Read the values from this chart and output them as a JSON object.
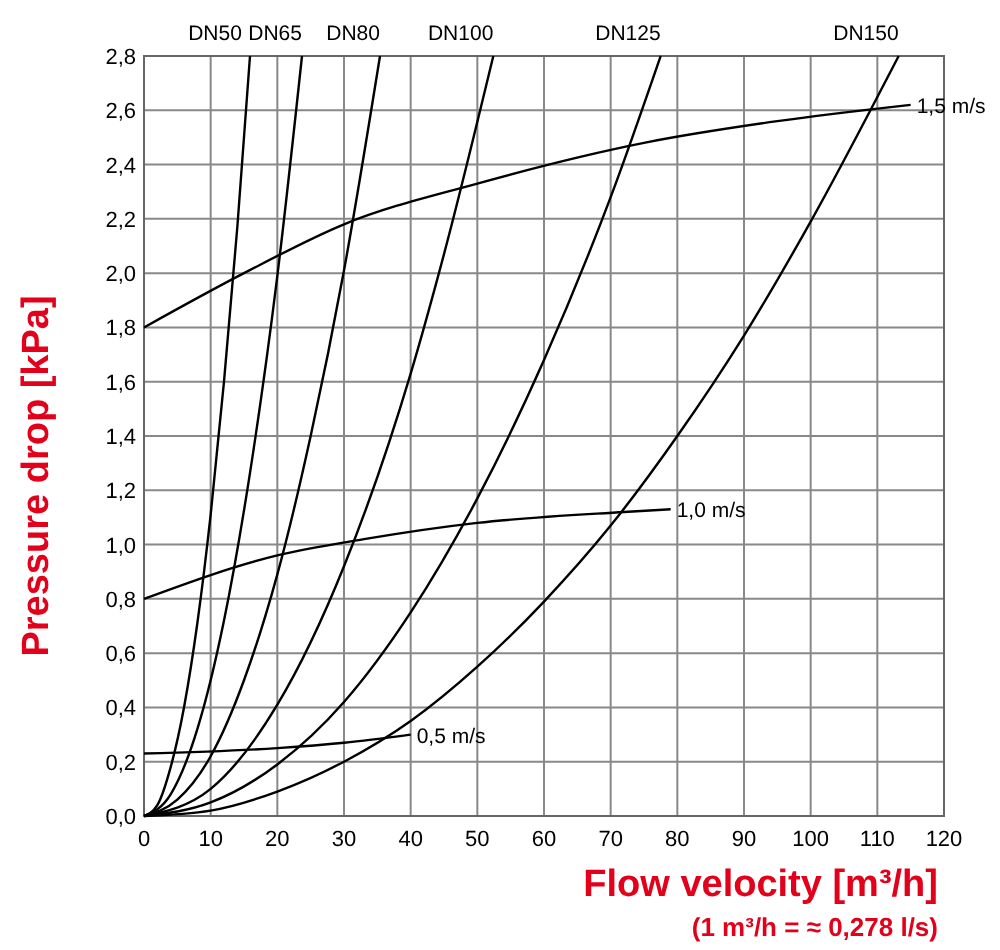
{
  "chart_data": {
    "type": "line",
    "xlabel": "Flow velocity [m³/h]",
    "ylabel": "Pressure drop [kPa]",
    "annotations": [
      "(1 m³/h = ≈ 0,278 l/s)"
    ],
    "xlim": [
      0,
      120
    ],
    "xticks": [
      0,
      10,
      20,
      30,
      40,
      50,
      60,
      70,
      80,
      90,
      100,
      110,
      120
    ],
    "ylim": [
      0,
      2.8
    ],
    "yticks": [
      {
        "value": 0,
        "label": "0,0"
      },
      {
        "value": 0.2,
        "label": "0,2"
      },
      {
        "value": 0.4,
        "label": "0,4"
      },
      {
        "value": 0.6,
        "label": "0,6"
      },
      {
        "value": 0.8,
        "label": "0,8"
      },
      {
        "value": 1,
        "label": "1,0"
      },
      {
        "value": 1.2,
        "label": "1,2"
      },
      {
        "value": 1.4,
        "label": "1,4"
      },
      {
        "value": 1.6,
        "label": "1,6"
      },
      {
        "value": 1.8,
        "label": "1,8"
      },
      {
        "value": 2,
        "label": "2,0"
      },
      {
        "value": 2.2,
        "label": "2,2"
      },
      {
        "value": 2.4,
        "label": "2,4"
      },
      {
        "value": 2.6,
        "label": "2,6"
      },
      {
        "value": 2.8,
        "label": "2,8"
      }
    ],
    "grid": true,
    "marker": "none",
    "line_style": "solid",
    "series": [
      {
        "name": "DN50",
        "color": "#000000",
        "x": [
          0,
          2,
          4,
          6,
          8,
          10,
          12,
          14,
          15.9
        ],
        "values": [
          0,
          0.04,
          0.18,
          0.4,
          0.71,
          1.11,
          1.6,
          2.17,
          2.8
        ]
      },
      {
        "name": "DN65",
        "color": "#000000",
        "x": [
          0,
          4,
          8,
          12,
          16,
          20,
          23.7
        ],
        "values": [
          0,
          0.08,
          0.32,
          0.72,
          1.28,
          1.99,
          2.8
        ]
      },
      {
        "name": "DN80",
        "color": "#000000",
        "x": [
          0,
          5,
          10,
          15,
          20,
          25,
          30,
          35.4
        ],
        "values": [
          0,
          0.06,
          0.22,
          0.5,
          0.89,
          1.4,
          2.01,
          2.8
        ]
      },
      {
        "name": "DN100",
        "color": "#000000",
        "x": [
          0,
          10,
          20,
          30,
          40,
          45,
          52.4
        ],
        "values": [
          0,
          0.1,
          0.41,
          0.92,
          1.63,
          2.07,
          2.8
        ]
      },
      {
        "name": "DN125",
        "color": "#000000",
        "x": [
          0,
          10,
          20,
          30,
          40,
          50,
          60,
          70,
          77.5
        ],
        "values": [
          0,
          0.05,
          0.19,
          0.42,
          0.75,
          1.17,
          1.68,
          2.28,
          2.8
        ]
      },
      {
        "name": "DN150",
        "color": "#000000",
        "x": [
          0,
          10,
          20,
          30,
          40,
          50,
          60,
          70,
          80,
          90,
          100,
          113.2
        ],
        "values": [
          0,
          0.02,
          0.09,
          0.2,
          0.35,
          0.55,
          0.79,
          1.07,
          1.4,
          1.77,
          2.19,
          2.8
        ]
      },
      {
        "name": "1,5 m/s",
        "color": "#000000",
        "x": [
          0,
          15,
          30,
          50,
          75,
          95,
          115
        ],
        "values": [
          1.8,
          2.0,
          2.18,
          2.33,
          2.48,
          2.56,
          2.62
        ]
      },
      {
        "name": "1,0 m/s",
        "color": "#000000",
        "x": [
          0,
          20,
          33,
          50,
          72,
          79
        ],
        "values": [
          0.8,
          0.96,
          1.02,
          1.08,
          1.12,
          1.13
        ]
      },
      {
        "name": "0,5 m/s",
        "color": "#000000",
        "x": [
          0,
          20,
          30,
          40
        ],
        "values": [
          0.23,
          0.25,
          0.27,
          0.3
        ]
      }
    ]
  }
}
